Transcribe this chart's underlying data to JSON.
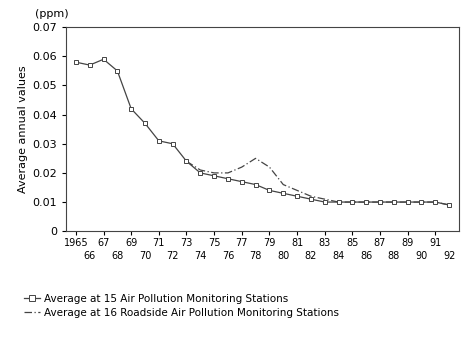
{
  "ylabel": "Average annual values",
  "xlabel_unit": "(ppm)",
  "ylim": [
    0,
    0.07
  ],
  "yticks": [
    0,
    0.01,
    0.02,
    0.03,
    0.04,
    0.05,
    0.06,
    0.07
  ],
  "series1_x": [
    1965,
    1966,
    1967,
    1968,
    1969,
    1970,
    1971,
    1972,
    1973,
    1974,
    1975,
    1976,
    1977,
    1978,
    1979,
    1980,
    1981,
    1982,
    1983,
    1984,
    1985,
    1986,
    1987,
    1988,
    1989,
    1990,
    1991,
    1992
  ],
  "series1_y": [
    0.058,
    0.057,
    0.059,
    0.055,
    0.042,
    0.037,
    0.031,
    0.03,
    0.024,
    0.02,
    0.019,
    0.018,
    0.017,
    0.016,
    0.014,
    0.013,
    0.012,
    0.011,
    0.01,
    0.01,
    0.01,
    0.01,
    0.01,
    0.01,
    0.01,
    0.01,
    0.01,
    0.009
  ],
  "series2_x": [
    1973,
    1974,
    1975,
    1976,
    1977,
    1978,
    1979,
    1980,
    1981,
    1982,
    1983,
    1984,
    1985,
    1986,
    1987,
    1988,
    1989,
    1990,
    1991,
    1992
  ],
  "series2_y": [
    0.024,
    0.021,
    0.02,
    0.02,
    0.022,
    0.025,
    0.022,
    0.016,
    0.014,
    0.012,
    0.011,
    0.01,
    0.01,
    0.01,
    0.01,
    0.01,
    0.01,
    0.01,
    0.01,
    0.009
  ],
  "legend1": "Average at 15 Air Pollution Monitoring Stations",
  "legend2": "Average at 16 Roadside Air Pollution Monitoring Stations",
  "line_color": "#444444",
  "bg_color": "#ffffff"
}
